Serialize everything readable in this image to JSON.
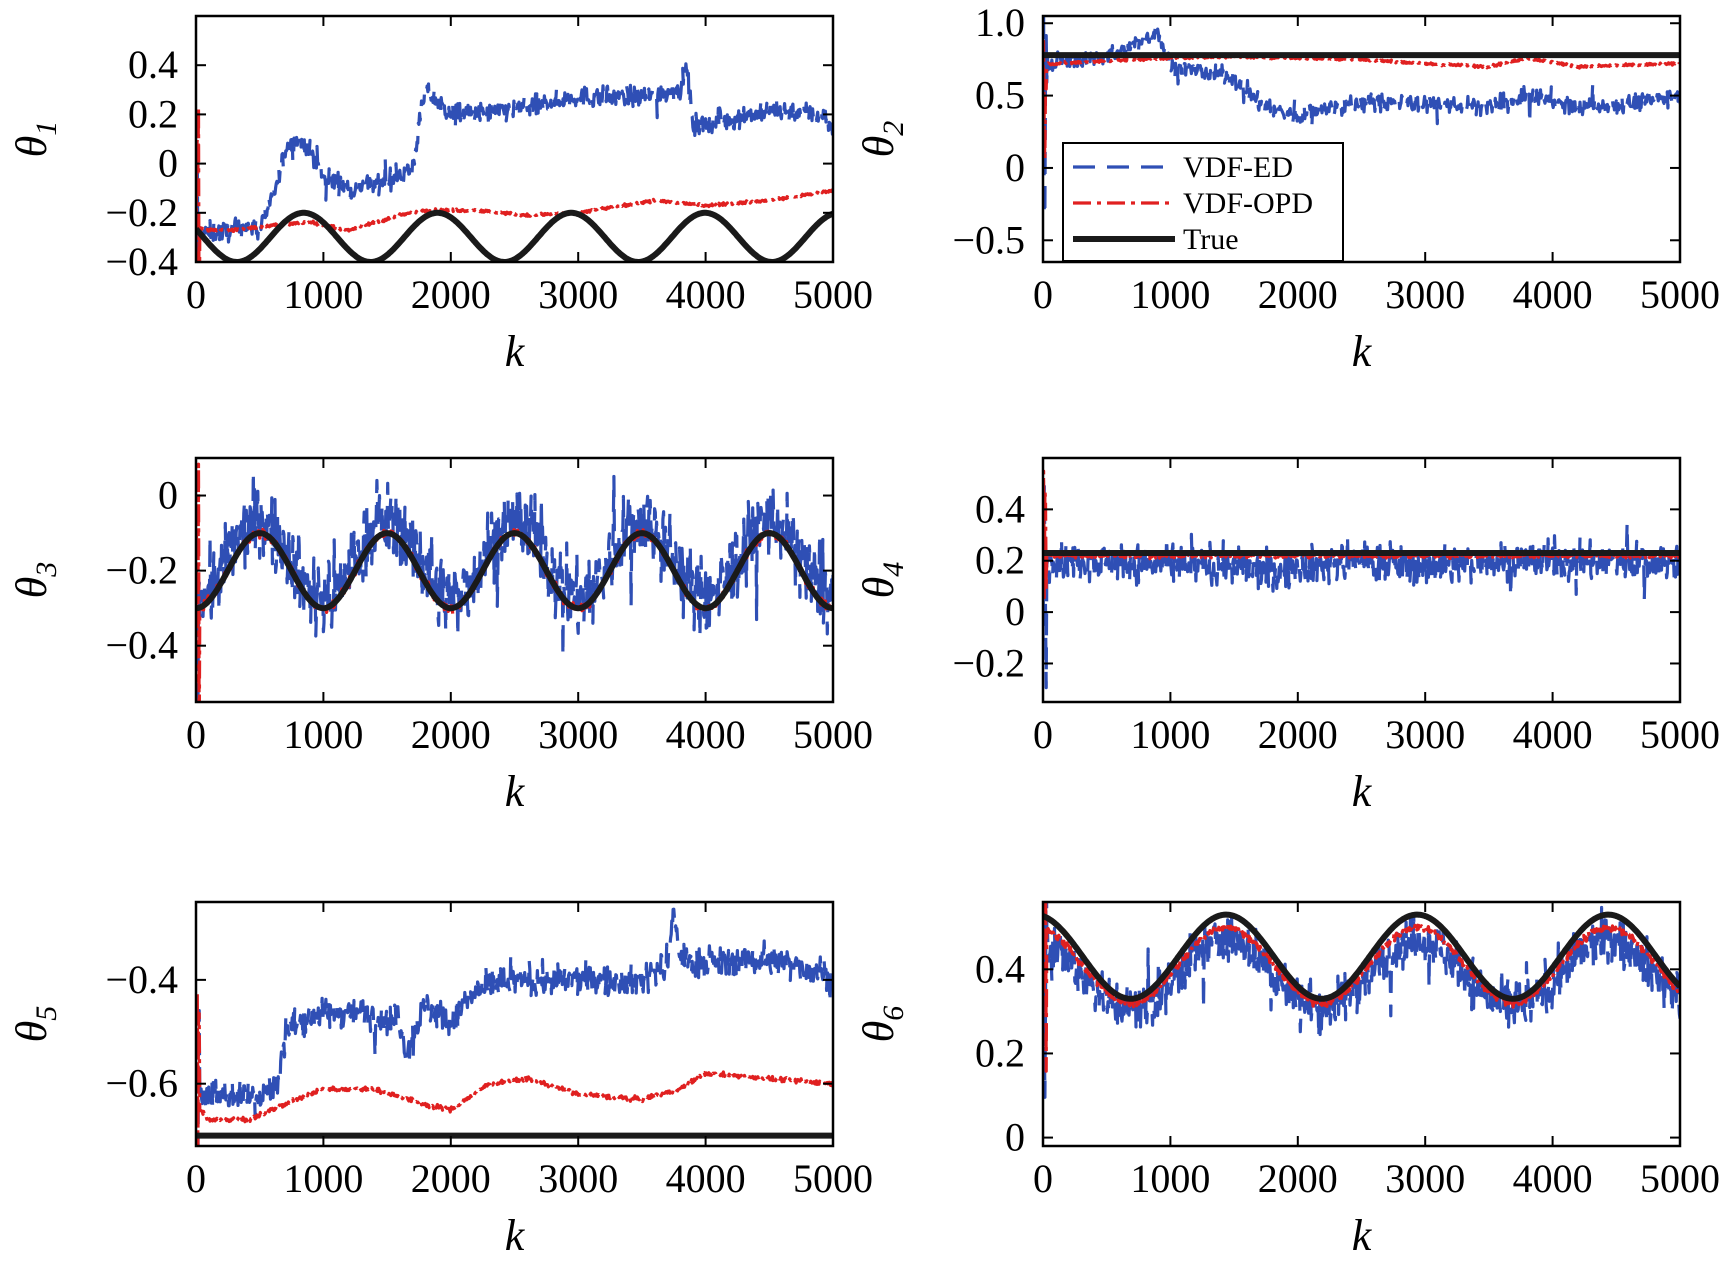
{
  "legend": [
    {
      "label": "VDF-ED",
      "color": "#2f4fb5",
      "style": "dashed"
    },
    {
      "label": "VDF-OPD",
      "color": "#e02020",
      "style": "dashdot"
    },
    {
      "label": "True",
      "color": "#1a1a1a",
      "style": "solid"
    }
  ],
  "chart_data": [
    {
      "type": "line",
      "ylabel_symbol": "θ",
      "ylabel_sub": "1",
      "xlabel": "k",
      "xlim": [
        0,
        5000
      ],
      "ylim": [
        -0.4,
        0.6
      ],
      "xticks": [
        0,
        1000,
        2000,
        3000,
        4000,
        5000
      ],
      "xticklabels": [
        "0",
        "1000",
        "2000",
        "3000",
        "4000",
        "5000"
      ],
      "yticks": [
        -0.4,
        -0.2,
        0,
        0.2,
        0.4
      ],
      "yticklabels": [
        "−0.4",
        "−0.2",
        "0",
        "0.2",
        "0.4"
      ],
      "series": [
        {
          "name": "VDF-ED",
          "noise": 0.03,
          "x": [
            0,
            100,
            300,
            500,
            600,
            700,
            800,
            900,
            1000,
            1200,
            1400,
            1600,
            1700,
            1750,
            1800,
            2000,
            2200,
            2500,
            3000,
            3500,
            3800,
            3850,
            3900,
            4200,
            4500,
            4900,
            5000
          ],
          "y": [
            -0.28,
            -0.28,
            -0.27,
            -0.25,
            -0.15,
            0.05,
            0.1,
            0.05,
            -0.05,
            -0.1,
            -0.08,
            -0.05,
            -0.02,
            0.15,
            0.3,
            0.2,
            0.2,
            0.22,
            0.27,
            0.27,
            0.3,
            0.4,
            0.15,
            0.18,
            0.22,
            0.2,
            0.15
          ]
        },
        {
          "name": "VDF-OPD",
          "noise": 0.004,
          "x": [
            0,
            100,
            300,
            600,
            900,
            1200,
            1600,
            1800,
            2200,
            2600,
            3000,
            3600,
            4000,
            4500,
            5000
          ],
          "y": [
            -0.26,
            -0.27,
            -0.27,
            -0.25,
            -0.24,
            -0.27,
            -0.21,
            -0.19,
            -0.19,
            -0.21,
            -0.2,
            -0.15,
            -0.17,
            -0.15,
            -0.11
          ]
        },
        {
          "name": "True",
          "func": "sin",
          "mean": -0.3,
          "amp": 0.1,
          "period": 1050,
          "phase_deg": 160
        }
      ]
    },
    {
      "type": "line",
      "ylabel_symbol": "θ",
      "ylabel_sub": "2",
      "xlabel": "k",
      "xlim": [
        0,
        5000
      ],
      "ylim": [
        -0.65,
        1.05
      ],
      "xticks": [
        0,
        1000,
        2000,
        3000,
        4000,
        5000
      ],
      "xticklabels": [
        "0",
        "1000",
        "2000",
        "3000",
        "4000",
        "5000"
      ],
      "yticks": [
        -0.5,
        0,
        0.5,
        1.0
      ],
      "yticklabels": [
        "−0.5",
        "0",
        "0.5",
        "1.0"
      ],
      "series": [
        {
          "name": "VDF-ED",
          "noise": 0.04,
          "x": [
            0,
            100,
            300,
            600,
            800,
            900,
            1000,
            1500,
            1700,
            2000,
            2100,
            2500,
            3000,
            3500,
            3700,
            3800,
            4200,
            4600,
            5000
          ],
          "y": [
            0.7,
            0.73,
            0.75,
            0.78,
            0.9,
            0.95,
            0.7,
            0.62,
            0.45,
            0.35,
            0.4,
            0.45,
            0.45,
            0.42,
            0.45,
            0.5,
            0.42,
            0.45,
            0.5
          ]
        },
        {
          "name": "VDF-OPD",
          "noise": 0.006,
          "x": [
            0,
            100,
            500,
            1000,
            1500,
            2000,
            2500,
            3000,
            3500,
            3800,
            4200,
            5000
          ],
          "y": [
            0.72,
            0.72,
            0.74,
            0.76,
            0.77,
            0.76,
            0.75,
            0.72,
            0.7,
            0.76,
            0.7,
            0.72
          ]
        },
        {
          "name": "True",
          "func": "const",
          "mean": 0.78
        }
      ]
    },
    {
      "type": "line",
      "ylabel_symbol": "θ",
      "ylabel_sub": "3",
      "xlabel": "k",
      "xlim": [
        0,
        5000
      ],
      "ylim": [
        -0.55,
        0.1
      ],
      "xticks": [
        0,
        1000,
        2000,
        3000,
        4000,
        5000
      ],
      "xticklabels": [
        "0",
        "1000",
        "2000",
        "3000",
        "4000",
        "5000"
      ],
      "yticks": [
        -0.4,
        -0.2,
        0
      ],
      "yticklabels": [
        "−0.4",
        "−0.2",
        "0"
      ],
      "series": [
        {
          "name": "VDF-ED",
          "noise": 0.07,
          "base": "sin",
          "mean": -0.17,
          "amp": 0.1,
          "period": 1000,
          "phase_deg": 270
        },
        {
          "name": "VDF-OPD",
          "noise": 0.008,
          "base": "sin",
          "mean": -0.2,
          "amp": 0.1,
          "period": 1000,
          "phase_deg": 270
        },
        {
          "name": "True",
          "func": "sin",
          "mean": -0.2,
          "amp": 0.1,
          "period": 1000,
          "phase_deg": 270
        }
      ]
    },
    {
      "type": "line",
      "ylabel_symbol": "θ",
      "ylabel_sub": "4",
      "xlabel": "k",
      "xlim": [
        0,
        5000
      ],
      "ylim": [
        -0.35,
        0.6
      ],
      "xticks": [
        0,
        1000,
        2000,
        3000,
        4000,
        5000
      ],
      "xticklabels": [
        "0",
        "1000",
        "2000",
        "3000",
        "4000",
        "5000"
      ],
      "yticks": [
        -0.2,
        0,
        0.2,
        0.4
      ],
      "yticklabels": [
        "−0.2",
        "0",
        "0.2",
        "0.4"
      ],
      "series": [
        {
          "name": "VDF-ED",
          "noise": 0.05,
          "x": [
            0,
            500,
            1000,
            1500,
            1800,
            2000,
            2500,
            3000,
            3500,
            4000,
            4500,
            5000
          ],
          "y": [
            0.2,
            0.2,
            0.18,
            0.18,
            0.15,
            0.18,
            0.2,
            0.17,
            0.2,
            0.2,
            0.2,
            0.2
          ]
        },
        {
          "name": "VDF-OPD",
          "noise": 0.006,
          "x": [
            0,
            100,
            1000,
            2000,
            3000,
            4000,
            5000
          ],
          "y": [
            0.22,
            0.22,
            0.22,
            0.22,
            0.22,
            0.22,
            0.22
          ]
        },
        {
          "name": "True",
          "func": "const",
          "mean": 0.23
        }
      ]
    },
    {
      "type": "line",
      "ylabel_symbol": "θ",
      "ylabel_sub": "5",
      "xlabel": "k",
      "xlim": [
        0,
        5000
      ],
      "ylim": [
        -0.72,
        -0.25
      ],
      "xticks": [
        0,
        1000,
        2000,
        3000,
        4000,
        5000
      ],
      "xticklabels": [
        "0",
        "1000",
        "2000",
        "3000",
        "4000",
        "5000"
      ],
      "yticks": [
        -0.6,
        -0.4
      ],
      "yticklabels": [
        "−0.6",
        "−0.4"
      ],
      "series": [
        {
          "name": "VDF-ED",
          "noise": 0.02,
          "x": [
            0,
            100,
            500,
            650,
            700,
            750,
            900,
            1200,
            1600,
            1650,
            1700,
            1800,
            2000,
            2200,
            2500,
            3000,
            3500,
            3700,
            3750,
            3800,
            4000,
            4500,
            5000
          ],
          "y": [
            -0.62,
            -0.62,
            -0.62,
            -0.6,
            -0.5,
            -0.49,
            -0.47,
            -0.46,
            -0.48,
            -0.55,
            -0.5,
            -0.45,
            -0.48,
            -0.42,
            -0.4,
            -0.4,
            -0.4,
            -0.37,
            -0.27,
            -0.36,
            -0.37,
            -0.36,
            -0.39
          ]
        },
        {
          "name": "VDF-OPD",
          "noise": 0.003,
          "x": [
            0,
            100,
            400,
            700,
            1000,
            1400,
            1800,
            2000,
            2300,
            2600,
            3000,
            3500,
            3800,
            4000,
            4500,
            5000
          ],
          "y": [
            -0.64,
            -0.67,
            -0.67,
            -0.64,
            -0.61,
            -0.61,
            -0.64,
            -0.65,
            -0.6,
            -0.59,
            -0.62,
            -0.63,
            -0.61,
            -0.58,
            -0.59,
            -0.6
          ]
        },
        {
          "name": "True",
          "func": "const",
          "mean": -0.7
        }
      ]
    },
    {
      "type": "line",
      "ylabel_symbol": "θ",
      "ylabel_sub": "6",
      "xlabel": "k",
      "xlim": [
        0,
        5000
      ],
      "ylim": [
        -0.02,
        0.56
      ],
      "xticks": [
        0,
        1000,
        2000,
        3000,
        4000,
        5000
      ],
      "xticklabels": [
        "0",
        "1000",
        "2000",
        "3000",
        "4000",
        "5000"
      ],
      "yticks": [
        0,
        0.2,
        0.4
      ],
      "yticklabels": [
        "0",
        "0.2",
        "0.4"
      ],
      "series": [
        {
          "name": "VDF-ED",
          "noise": 0.04,
          "base": "sin",
          "mean": 0.39,
          "amp": 0.08,
          "period": 1500,
          "phase_deg": 105
        },
        {
          "name": "VDF-OPD",
          "noise": 0.006,
          "base": "sin",
          "mean": 0.41,
          "amp": 0.09,
          "period": 1500,
          "phase_deg": 105
        },
        {
          "name": "True",
          "func": "sin",
          "mean": 0.43,
          "amp": 0.1,
          "period": 1500,
          "phase_deg": 105
        }
      ]
    }
  ]
}
